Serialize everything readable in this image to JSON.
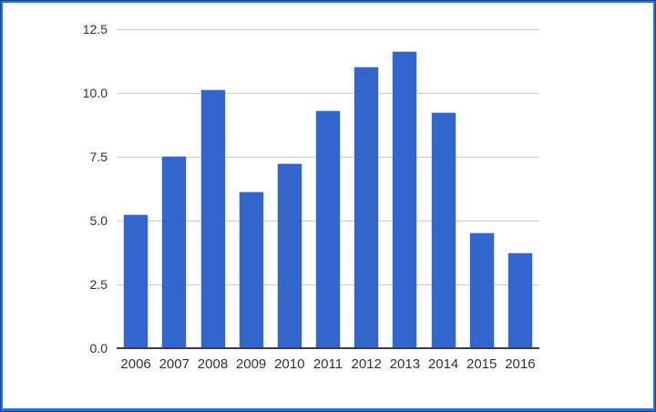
{
  "frame": {
    "edge_color": "#14439a",
    "border_color": "#2673d8",
    "background": "#ffffff"
  },
  "chart_data": {
    "type": "bar",
    "categories": [
      "2006",
      "2007",
      "2008",
      "2009",
      "2010",
      "2011",
      "2012",
      "2013",
      "2014",
      "2015",
      "2016"
    ],
    "values": [
      5.2,
      7.5,
      10.1,
      6.1,
      7.2,
      9.3,
      11.0,
      11.6,
      9.2,
      4.5,
      3.7
    ],
    "ylim": [
      0,
      12.5
    ],
    "yticks": [
      0,
      2.5,
      5,
      7.5,
      10,
      12.5
    ],
    "ytick_labels": [
      "0.0",
      "2.5",
      "5.0",
      "7.5",
      "10.0",
      "12.5"
    ],
    "grid": true,
    "legend_position": "none",
    "bar_color": "#3366cc",
    "gridline_color": "#cccccc",
    "axis_line_color": "#3d3d3d",
    "label_color": "#333333"
  }
}
